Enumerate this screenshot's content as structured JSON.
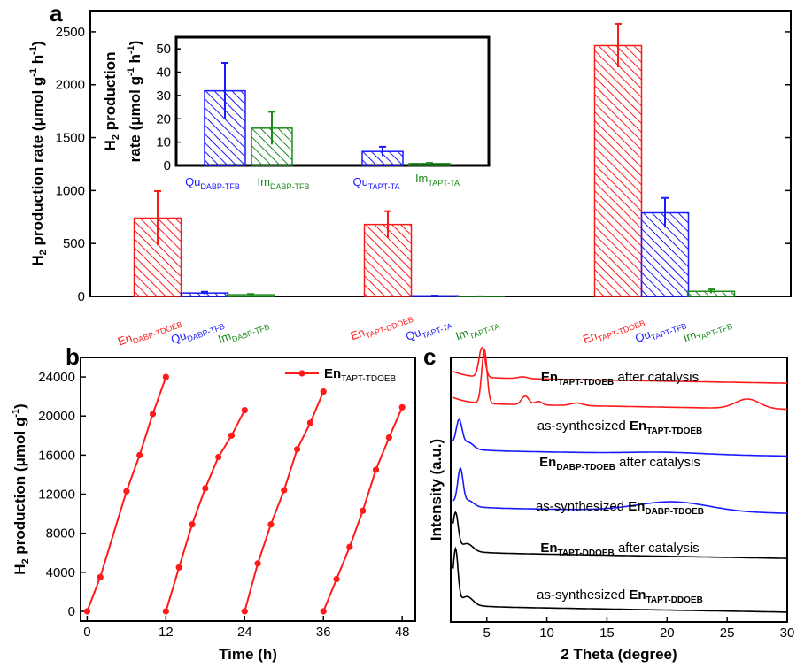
{
  "colors": {
    "red": "#ff1a1a",
    "blue": "#1a1aff",
    "green": "#1c8a1c",
    "black": "#000000"
  },
  "chart_data": [
    {
      "panel": "a",
      "type": "bar",
      "ylabel": "H2 production rate (μmol g-1 h-1)",
      "ylim": [
        0,
        2700
      ],
      "yticks": [
        "0",
        "500",
        "1000",
        "1500",
        "2000",
        "2500"
      ],
      "bars": [
        {
          "label": "EnDABP-TDOEB",
          "main": "En",
          "subscript": "DABP-TDOEB",
          "color": "red",
          "value": 740,
          "error": 255
        },
        {
          "label": "QuDABP-TFB",
          "main": "Qu",
          "subscript": "DABP-TFB",
          "color": "blue",
          "value": 32,
          "error": 12
        },
        {
          "label": "ImDABP-TFB",
          "main": "Im",
          "subscript": "DABP-TFB",
          "color": "green",
          "value": 16,
          "error": 7
        },
        {
          "label": "EnTAPT-DDOEB",
          "main": "En",
          "subscript": "TAPT-DDOEB",
          "color": "red",
          "value": 680,
          "error": 125
        },
        {
          "label": "QuTAPT-TA",
          "main": "Qu",
          "subscript": "TAPT-TA",
          "color": "blue",
          "value": 6,
          "error": 2
        },
        {
          "label": "ImTAPT-TA",
          "main": "Im",
          "subscript": "TAPT-TA",
          "color": "green",
          "value": 0.8,
          "error": 0.3
        },
        {
          "label": "EnTAPT-TDOEB",
          "main": "En",
          "subscript": "TAPT-TDOEB",
          "color": "red",
          "value": 2370,
          "error": 205
        },
        {
          "label": "QuTAPT-TFB",
          "main": "Qu",
          "subscript": "TAPT-TFB",
          "color": "blue",
          "value": 790,
          "error": 140
        },
        {
          "label": "ImTAPT-TFB",
          "main": "Im",
          "subscript": "TAPT-TFB",
          "color": "green",
          "value": 48,
          "error": 18
        }
      ],
      "inset": {
        "ylabel_line1": "H2 production",
        "ylabel_line2": "rate (μmol g-1 h-1)",
        "ylim": [
          0,
          55
        ],
        "yticks": [
          "0",
          "10",
          "20",
          "30",
          "40",
          "50"
        ],
        "bars": [
          {
            "label": "QuDABP-TFB",
            "main": "Qu",
            "subscript": "DABP-TFB",
            "color": "blue",
            "value": 32,
            "error": 12
          },
          {
            "label": "ImDABP-TFB",
            "main": "Im",
            "subscript": "DABP-TFB",
            "color": "green",
            "value": 16,
            "error": 7
          },
          {
            "label": "QuTAPT-TA",
            "main": "Qu",
            "subscript": "TAPT-TA",
            "color": "blue",
            "value": 6,
            "error": 2
          },
          {
            "label": "ImTAPT-TA",
            "main": "Im",
            "subscript": "TAPT-TA",
            "color": "green",
            "value": 0.8,
            "error": 0.3
          }
        ]
      }
    },
    {
      "panel": "b",
      "type": "line",
      "xlabel": "Time (h)",
      "ylabel": "H2 production (μmol g-1)",
      "xlim": [
        -1,
        50
      ],
      "ylim": [
        -1000,
        26000
      ],
      "xticks": [
        "0",
        "12",
        "24",
        "36",
        "48"
      ],
      "yticks": [
        "0",
        "4000",
        "8000",
        "12000",
        "16000",
        "20000",
        "24000"
      ],
      "legend": {
        "main": "En",
        "subscript": "TAPT-TDOEB"
      },
      "color": "red",
      "series": [
        {
          "name": "cycle 1",
          "x": [
            0,
            2,
            6,
            8,
            10,
            12
          ],
          "y": [
            0,
            3500,
            12300,
            16000,
            20200,
            24000
          ]
        },
        {
          "name": "cycle 2",
          "x": [
            12,
            14,
            16,
            18,
            20,
            22,
            24
          ],
          "y": [
            0,
            4500,
            8900,
            12600,
            15800,
            18000,
            20600
          ]
        },
        {
          "name": "cycle 3",
          "x": [
            24,
            26,
            28,
            30,
            32,
            34,
            36
          ],
          "y": [
            0,
            4900,
            8900,
            12400,
            16600,
            19300,
            22500
          ]
        },
        {
          "name": "cycle 4",
          "x": [
            36,
            38,
            40,
            42,
            44,
            46,
            48
          ],
          "y": [
            0,
            3300,
            6600,
            10300,
            14500,
            17800,
            20900
          ]
        }
      ]
    },
    {
      "panel": "c",
      "type": "line",
      "xlabel": "2 Theta (degree)",
      "ylabel": "Intensity (a.u.)",
      "xlim": [
        2,
        30
      ],
      "xticks": [
        "5",
        "10",
        "15",
        "20",
        "25",
        "30"
      ],
      "series": [
        {
          "name": "EnTAPT-TDOEB after catalysis",
          "color": "red",
          "label_pre": "",
          "label_main": "En",
          "label_sub": "TAPT-TDOEB",
          "label_post": " after catalysis",
          "baseline": 13.2,
          "peaks": [
            [
              4.6,
              1.7,
              0.25
            ],
            [
              8.0,
              0.1,
              0.4
            ]
          ]
        },
        {
          "name": "as-synthesized EnTAPT-TDOEB",
          "color": "red",
          "label_pre": "as-synthesized ",
          "label_main": "En",
          "label_sub": "TAPT-TDOEB",
          "label_post": "",
          "baseline": 11.7,
          "peaks": [
            [
              4.8,
              3.1,
              0.22
            ],
            [
              8.2,
              0.5,
              0.3
            ],
            [
              9.3,
              0.2,
              0.3
            ],
            [
              12.5,
              0.15,
              0.5
            ],
            [
              26.7,
              0.55,
              1.0
            ]
          ]
        },
        {
          "name": "EnDABP-TDOEB after catalysis",
          "color": "blue",
          "label_pre": "",
          "label_main": "En",
          "label_sub": "DABP-TDOEB",
          "label_post": " after catalysis",
          "baseline": 9.0,
          "peaks": [
            [
              2.7,
              1.5,
              0.25
            ],
            [
              3.5,
              0.35,
              0.4
            ],
            [
              20.0,
              0.1,
              3.0
            ]
          ]
        },
        {
          "name": "as-synthesized EnDABP-TDOEB",
          "color": "blue",
          "label_pre": "as-synthesized ",
          "label_main": "En",
          "label_sub": "DABP-TDOEB",
          "label_post": "",
          "baseline": 5.7,
          "peaks": [
            [
              2.8,
              2.0,
              0.22
            ],
            [
              3.5,
              0.3,
              0.4
            ],
            [
              20.5,
              0.55,
              3.0
            ]
          ]
        },
        {
          "name": "EnTAPT-DDOEB after catalysis",
          "color": "black",
          "label_pre": "",
          "label_main": "En",
          "label_sub": "TAPT-DDOEB",
          "label_post": " after catalysis",
          "baseline": 3.1,
          "peaks": [
            [
              2.4,
              2.0,
              0.22
            ],
            [
              3.4,
              0.4,
              0.45
            ]
          ]
        },
        {
          "name": "as-synthesized EnTAPT-DDOEB",
          "color": "black",
          "label_pre": "as-synthesized ",
          "label_main": "En",
          "label_sub": "TAPT-DDOEB",
          "label_post": "",
          "baseline": 0,
          "peaks": [
            [
              2.4,
              3.0,
              0.2
            ],
            [
              3.4,
              0.45,
              0.45
            ]
          ]
        }
      ]
    }
  ]
}
